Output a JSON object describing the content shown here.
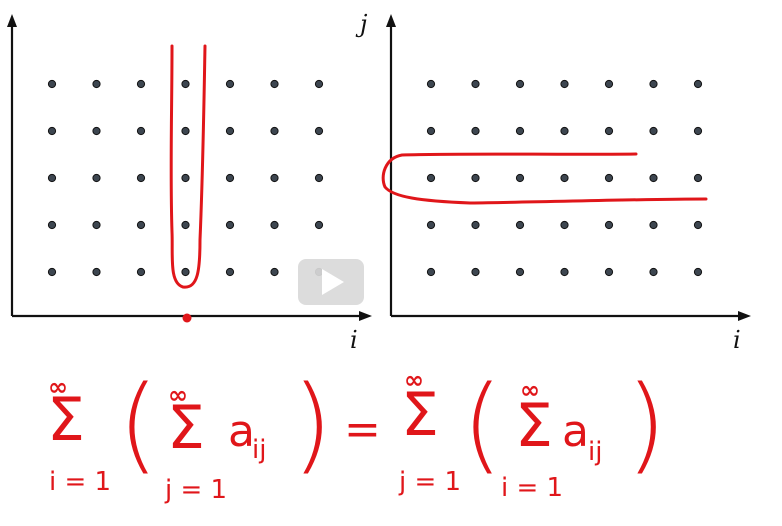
{
  "left_panel": {
    "x_axis_label": "i",
    "grid": {
      "columns": 7,
      "rows": 5
    },
    "highlighted_column": 4
  },
  "right_panel": {
    "x_axis_label": "i",
    "y_axis_label": "j",
    "grid": {
      "columns": 7,
      "rows": 5
    },
    "highlighted_row": 3
  },
  "equation": {
    "lhs_outer": {
      "symbol": "Σ",
      "upper": "∞",
      "lower": "i = 1"
    },
    "lhs_inner": {
      "symbol": "Σ",
      "upper": "∞",
      "lower": "j = 1"
    },
    "lhs_term": "a",
    "lhs_term_sub": "ij",
    "equals": "=",
    "rhs_outer": {
      "symbol": "Σ",
      "upper": "∞",
      "lower": "j = 1"
    },
    "rhs_inner": {
      "symbol": "Σ",
      "upper": "∞",
      "lower": "i = 1"
    },
    "rhs_term": "a",
    "rhs_term_sub": "ij",
    "open_paren": "(",
    "close_paren": ")"
  },
  "colors": {
    "ink": "#e0161a",
    "axes": "#111111",
    "dots": "#3d4650"
  },
  "overlay": {
    "icon": "play-icon"
  }
}
